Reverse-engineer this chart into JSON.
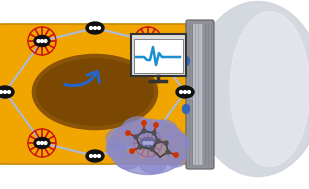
{
  "fig_width": 3.09,
  "fig_height": 1.89,
  "dpi": 100,
  "background_color": "#ffffff",
  "mof_color": "#f0a500",
  "mof_inner_color": "#7a4800",
  "mof_node_color": "#111111",
  "molecule_blob_color": "#8888cc",
  "molecule_blob_alpha": 0.75,
  "arrow_color": "#2266cc",
  "monitor_bg": "#ffffff",
  "monitor_border": "#333333",
  "monitor_signal_color": "#1a8fd1",
  "magnet_gray": "#909098",
  "magnet_light": "#b8bcc5",
  "magnet_blob": "#c8ccd8",
  "accent_blue": "#3366bb",
  "node_color": "#111111",
  "ligand_red": "#cc1111",
  "linker_blue": "#aabbdd"
}
